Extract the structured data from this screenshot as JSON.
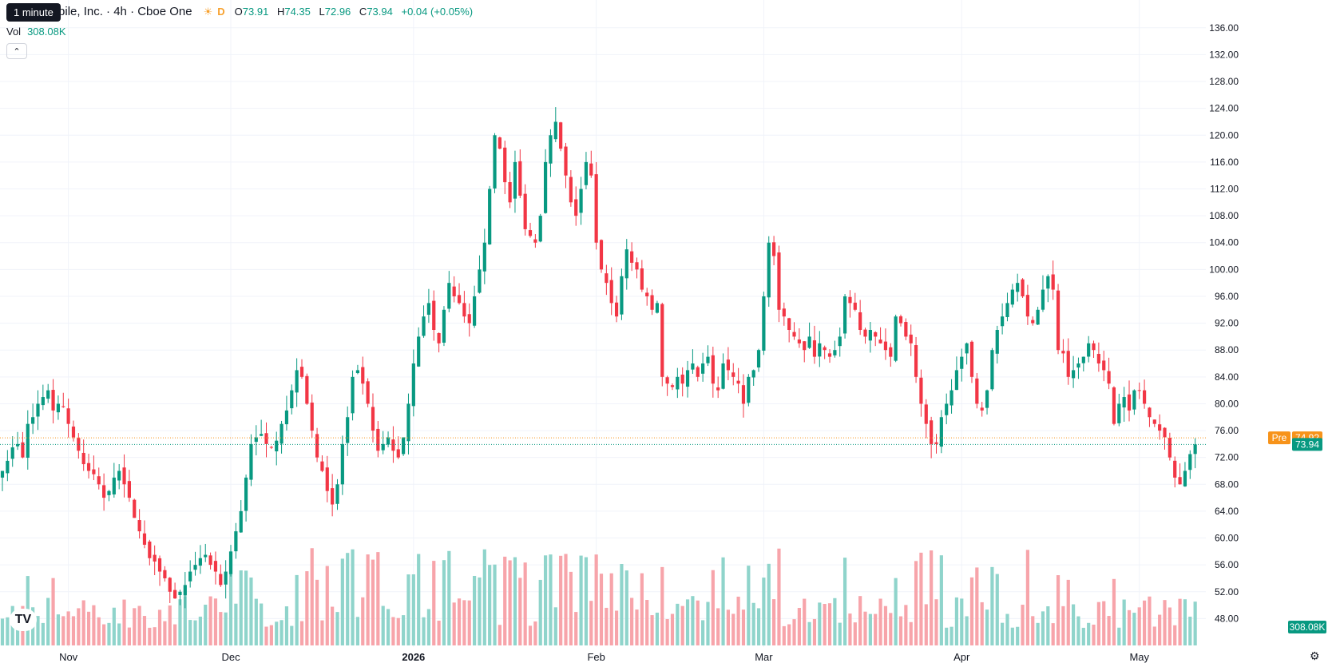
{
  "header": {
    "tooltip": "1 minute",
    "title": "aceMobile, Inc. · 4h · Cboe One",
    "sun_icon": "sun-icon",
    "interval_badge": "D",
    "ohlc": [
      {
        "key": "O",
        "value": "73.91"
      },
      {
        "key": "H",
        "value": "74.35"
      },
      {
        "key": "L",
        "value": "72.96"
      },
      {
        "key": "C",
        "value": "73.94"
      }
    ],
    "change": "+0.04 (+0.05%)",
    "vol_label": "Vol",
    "vol_value": "308.08K",
    "collapse_icon": "chevron-up-icon"
  },
  "price_axis_labels": {
    "pre_label": "Pre",
    "pre_value": "74.92",
    "last_value": "73.94",
    "volume_value": "308.08K"
  },
  "colors": {
    "up": "#089981",
    "down": "#f23645",
    "up_volume": "#8fd4cb",
    "down_volume": "#f7a4aa",
    "pre": "#f7931a",
    "grid": "#f0f3fa"
  },
  "chart_data": {
    "type": "candlestick",
    "y_ticks": [
      48,
      52,
      56,
      60,
      64,
      68,
      72,
      76,
      80,
      84,
      88,
      92,
      96,
      100,
      104,
      108,
      112,
      116,
      120,
      124,
      128,
      132,
      136
    ],
    "ylim": [
      44,
      138
    ],
    "x_labels": [
      {
        "label": "Nov",
        "index": 13
      },
      {
        "label": "Dec",
        "index": 45
      },
      {
        "label": "2026",
        "index": 81
      },
      {
        "label": "Feb",
        "index": 117
      },
      {
        "label": "Mar",
        "index": 150
      },
      {
        "label": "Apr",
        "index": 189
      },
      {
        "label": "May",
        "index": 224
      }
    ],
    "close": [
      70,
      71.5,
      73.5,
      74,
      72,
      77,
      78,
      80,
      81,
      82,
      79,
      80,
      79.5,
      77,
      75,
      73,
      71,
      70,
      69.5,
      68,
      66,
      67,
      69,
      70,
      68,
      66,
      63,
      61,
      59,
      57,
      56.5,
      55,
      54,
      52,
      51,
      52,
      53,
      55,
      56,
      57,
      57.5,
      56,
      55,
      53,
      55,
      58,
      61,
      64,
      69,
      74,
      75,
      75.5,
      74,
      73.5,
      74.5,
      77,
      79,
      82,
      85,
      84,
      80,
      76,
      72,
      70,
      67,
      65,
      68,
      74,
      78,
      84,
      85,
      83,
      80,
      76,
      73,
      74,
      75,
      73,
      72,
      75,
      80,
      86,
      90,
      93,
      95,
      91,
      89,
      94,
      98,
      96,
      95,
      93,
      92,
      96,
      100,
      104,
      112,
      120,
      118,
      113,
      110,
      116,
      111,
      106,
      105,
      104,
      108,
      116,
      120,
      122,
      118,
      114,
      110,
      108,
      112,
      116,
      114,
      104,
      100,
      98,
      95,
      93,
      99,
      103,
      101,
      100,
      97,
      96,
      94,
      95,
      84,
      83,
      82.5,
      84,
      83,
      85,
      86,
      84,
      86,
      87,
      83,
      82,
      86,
      85,
      84,
      83,
      80,
      84,
      85,
      88,
      96,
      104,
      102,
      94,
      93,
      91,
      90,
      89,
      88,
      90,
      87,
      89,
      88,
      87,
      88,
      90,
      96,
      95,
      94,
      91,
      90,
      91,
      90,
      89,
      88,
      87,
      93,
      92,
      90,
      89,
      84,
      80,
      77,
      74,
      74,
      78,
      80,
      82,
      85,
      87,
      89,
      84,
      80,
      79,
      82,
      88,
      91,
      93,
      95,
      97,
      98,
      96,
      93,
      92,
      94,
      97,
      99,
      97,
      88,
      87.5,
      84,
      85,
      86,
      87,
      89,
      88,
      86,
      85,
      83,
      77,
      80,
      81,
      79,
      82,
      82,
      80,
      78,
      77,
      76,
      75,
      72,
      69,
      68,
      70,
      72.5,
      73.94
    ]
  }
}
